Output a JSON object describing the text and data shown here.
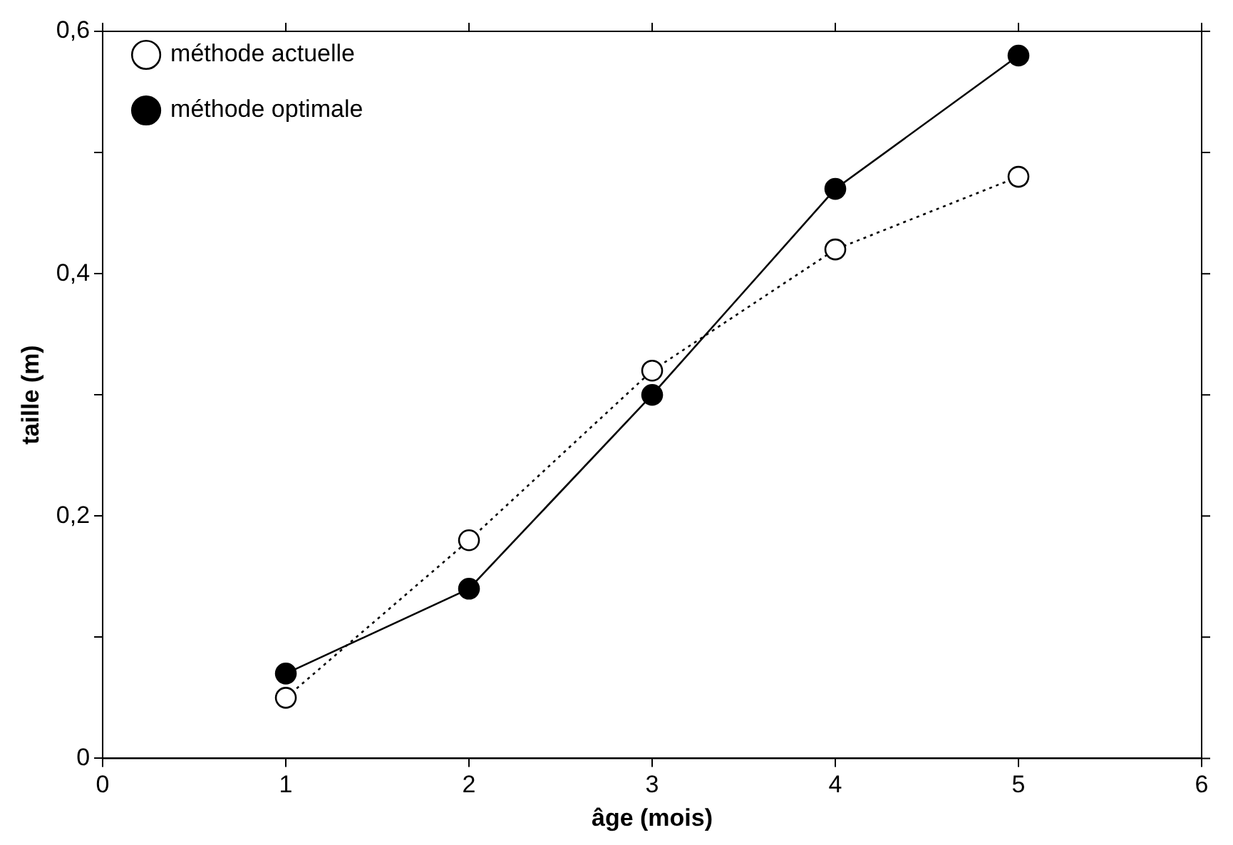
{
  "chart_data": {
    "type": "line",
    "xlabel": "âge (mois)",
    "ylabel": "taille (m)",
    "x": [
      1,
      2,
      3,
      4,
      5
    ],
    "series": [
      {
        "name": "méthode actuelle",
        "color": "#000000",
        "values": [
          0.05,
          0.18,
          0.32,
          0.42,
          0.48
        ],
        "marker": "circle",
        "line_style": "dotted"
      },
      {
        "name": "méthode optimale",
        "color": "#000000",
        "values": [
          0.07,
          0.14,
          0.3,
          0.47,
          0.58
        ],
        "marker": "circle",
        "line_style": "solid"
      }
    ],
    "xlim": [
      0,
      6
    ],
    "xticks": [
      0,
      1,
      2,
      3,
      4,
      5,
      6
    ],
    "ylim": [
      0,
      0.6
    ],
    "yticks": [
      {
        "value": 0,
        "label": "0"
      },
      {
        "value": 0.1,
        "label": null
      },
      {
        "value": 0.2,
        "label": "0,2"
      },
      {
        "value": 0.3,
        "label": null
      },
      {
        "value": 0.4,
        "label": "0,4"
      },
      {
        "value": 0.5,
        "label": null
      },
      {
        "value": 0.6,
        "label": "0,6"
      }
    ],
    "grid": false,
    "legend": "top left"
  }
}
